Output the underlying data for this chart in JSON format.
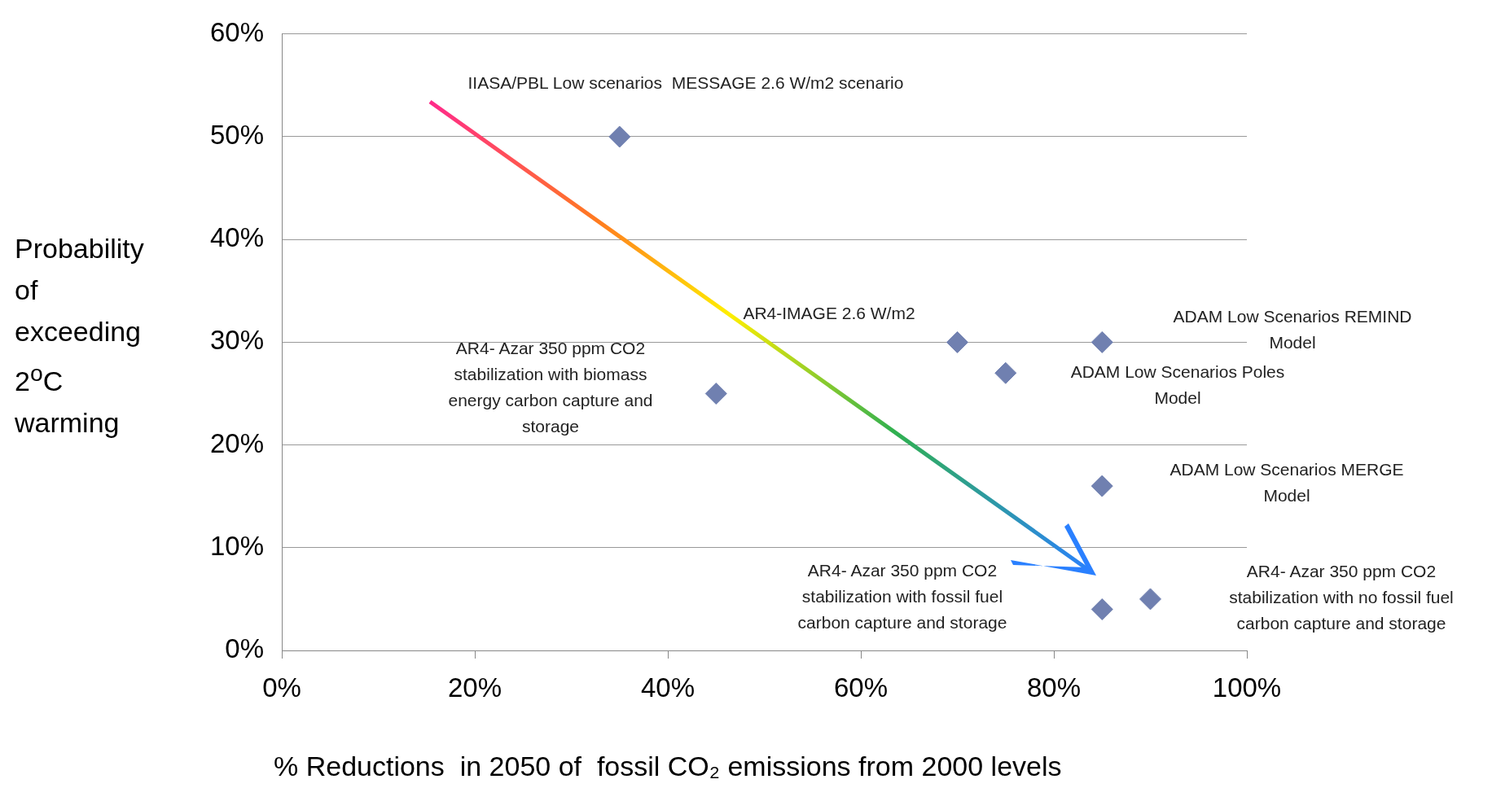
{
  "chart_data": {
    "type": "scatter",
    "xlabel": "% Reductions  in 2050 of  fossil CO₂ emissions from 2000 levels",
    "ylabel": "Probability of exceeding  2$^{o}$C warming",
    "x": [
      35,
      45,
      70,
      75,
      85,
      85,
      85,
      90
    ],
    "series": [
      {
        "color": "#7080b0",
        "values": [
          50,
          25,
          30,
          27,
          30,
          16,
          4,
          5
        ]
      }
    ],
    "marker": "diamond",
    "xlim": [
      0,
      100
    ],
    "xticks": [
      {
        "value": 0,
        "label": "0%"
      },
      {
        "value": 20,
        "label": "20%"
      },
      {
        "value": 40,
        "label": "40%"
      },
      {
        "value": 60,
        "label": "60%"
      },
      {
        "value": 80,
        "label": "80%"
      },
      {
        "value": 100,
        "label": "100%"
      }
    ],
    "ylim": [
      0,
      60
    ],
    "yticks": [
      {
        "value": 0,
        "label": "0%"
      },
      {
        "value": 10,
        "label": "10%"
      },
      {
        "value": 20,
        "label": "20%"
      },
      {
        "value": 30,
        "label": "30%"
      },
      {
        "value": 40,
        "label": "40%"
      },
      {
        "value": 50,
        "label": "50%"
      },
      {
        "value": 60,
        "label": "60%"
      }
    ],
    "grid": "y",
    "legend": false,
    "annotations": [
      "IIASA/PBL Low scenarios  MESSAGE 2.6 W/m2 scenario",
      "AR4- Azar 350 ppm CO2\nstabilization with biomass\nenergy carbon capture and\nstorage",
      "AR4-IMAGE 2.6 W/m2",
      "ADAM Low Scenarios Poles\nModel",
      "ADAM Low Scenarios REMIND\nModel",
      "ADAM Low Scenarios MERGE\nModel",
      "AR4- Azar 350 ppm CO2\nstabilization with fossil fuel\ncarbon capture and storage",
      "AR4- Azar 350 ppm CO2\nstabilization with no fossil fuel\ncarbon capture and storage"
    ]
  }
}
